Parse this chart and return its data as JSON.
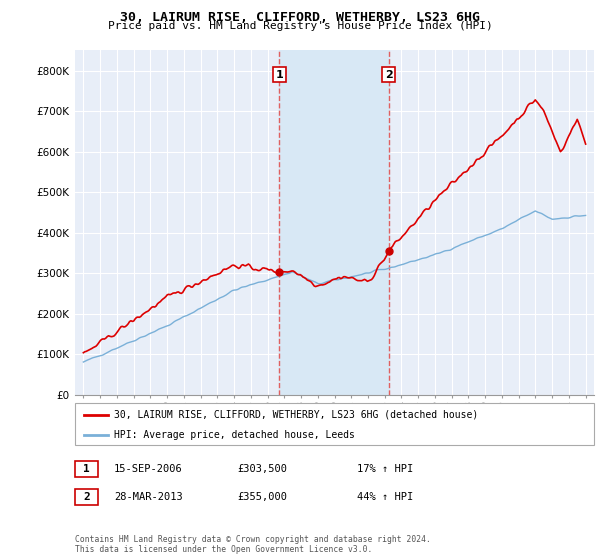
{
  "title": "30, LAIRUM RISE, CLIFFORD, WETHERBY, LS23 6HG",
  "subtitle": "Price paid vs. HM Land Registry's House Price Index (HPI)",
  "ylim": [
    0,
    850000
  ],
  "yticks": [
    0,
    100000,
    200000,
    300000,
    400000,
    500000,
    600000,
    700000,
    800000
  ],
  "ytick_labels": [
    "£0",
    "£100K",
    "£200K",
    "£300K",
    "£400K",
    "£500K",
    "£600K",
    "£700K",
    "£800K"
  ],
  "hpi_color": "#7ab0d8",
  "price_color": "#dd0000",
  "marker_color": "#cc0000",
  "transaction1_x": 2006.71,
  "transaction1_y": 303500,
  "transaction2_x": 2013.24,
  "transaction2_y": 355000,
  "vline_color": "#e06060",
  "shade_color": "#d8e8f5",
  "legend_price_label": "30, LAIRUM RISE, CLIFFORD, WETHERBY, LS23 6HG (detached house)",
  "legend_hpi_label": "HPI: Average price, detached house, Leeds",
  "footer_line1": "Contains HM Land Registry data © Crown copyright and database right 2024.",
  "footer_line2": "This data is licensed under the Open Government Licence v3.0.",
  "table_row1": [
    "1",
    "15-SEP-2006",
    "£303,500",
    "17% ↑ HPI"
  ],
  "table_row2": [
    "2",
    "28-MAR-2013",
    "£355,000",
    "44% ↑ HPI"
  ],
  "background_color": "#ffffff",
  "plot_bg_color": "#e8eef8",
  "grid_color": "#ffffff",
  "xlim_left": 1994.5,
  "xlim_right": 2025.5
}
